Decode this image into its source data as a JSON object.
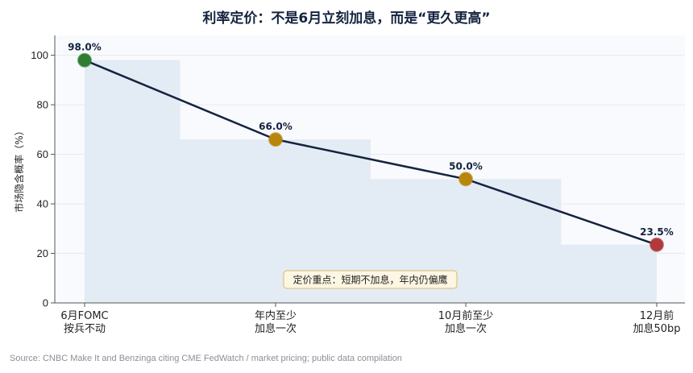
{
  "chart_data": {
    "type": "line",
    "title": "利率定价：不是6月立刻加息，而是“更久更高”",
    "ylabel": "市场隐含概率（%）",
    "xlabel": "",
    "ylim": [
      0,
      108
    ],
    "yticks": [
      0,
      20,
      40,
      60,
      80,
      100
    ],
    "grid": true,
    "categories": [
      [
        "6月FOMC",
        "按兵不动"
      ],
      [
        "年内至少",
        "加息一次"
      ],
      [
        "10月前至少",
        "加息一次"
      ],
      [
        "12月前",
        "加息50bp"
      ]
    ],
    "series": [
      {
        "values": [
          98.0,
          66.0,
          50.0,
          23.5
        ]
      }
    ],
    "data_labels": [
      "98.0%",
      "66.0%",
      "50.0%",
      "23.5%"
    ],
    "point_colors": [
      "#2e7d32",
      "#b8860b",
      "#b8860b",
      "#b03a3a"
    ],
    "line_color": "#14233f",
    "step_fill_color": "#e3ebf5",
    "annotation": "定价重点：短期不加息，年内仍偏鹰"
  },
  "source": "Source: CNBC Make It and Benzinga citing CME FedWatch / market pricing; public data compilation"
}
